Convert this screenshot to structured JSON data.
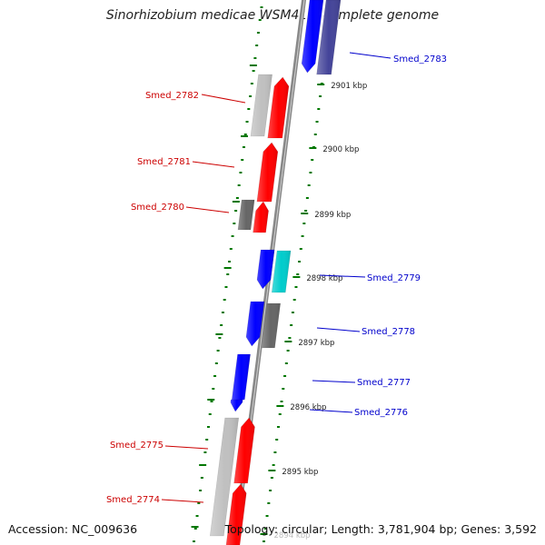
{
  "title": "Sinorhizobium medicae WSM419, complete genome",
  "footer": {
    "accession": "Accession: NC_009636",
    "summary": "Topology: circular; Length: 3,781,904 bp; Genes: 3,592"
  },
  "colors": {
    "forward_cds": "#ff0000",
    "forward_other": "#c0c0c0",
    "reverse_cds": "#0000ff",
    "reverse_other": "#666666",
    "reverse_alt": "#00cccc",
    "reverse_dark": "#444499",
    "backbone": "#888888",
    "tick": "#007700",
    "label_forward": "#cc0000",
    "label_reverse": "#0000cc"
  },
  "scale_labels": [
    {
      "text": "2901 kbp",
      "kbp": 2901
    },
    {
      "text": "2900 kbp",
      "kbp": 2900
    },
    {
      "text": "2899 kbp",
      "kbp": 2899
    },
    {
      "text": "2898 kbp",
      "kbp": 2898
    },
    {
      "text": "2897 kbp",
      "kbp": 2897
    },
    {
      "text": "2896 kbp",
      "kbp": 2896
    },
    {
      "text": "2895 kbp",
      "kbp": 2895
    },
    {
      "text": "2894 kbp",
      "kbp": 2894
    }
  ],
  "genes": [
    {
      "name": "Smed_2783",
      "strand": "reverse"
    },
    {
      "name": "Smed_2782",
      "strand": "forward"
    },
    {
      "name": "Smed_2781",
      "strand": "forward"
    },
    {
      "name": "Smed_2780",
      "strand": "forward"
    },
    {
      "name": "Smed_2779",
      "strand": "reverse"
    },
    {
      "name": "Smed_2778",
      "strand": "reverse"
    },
    {
      "name": "Smed_2777",
      "strand": "reverse"
    },
    {
      "name": "Smed_2776",
      "strand": "reverse"
    },
    {
      "name": "Smed_2775",
      "strand": "forward"
    },
    {
      "name": "Smed_2774",
      "strand": "forward"
    }
  ]
}
